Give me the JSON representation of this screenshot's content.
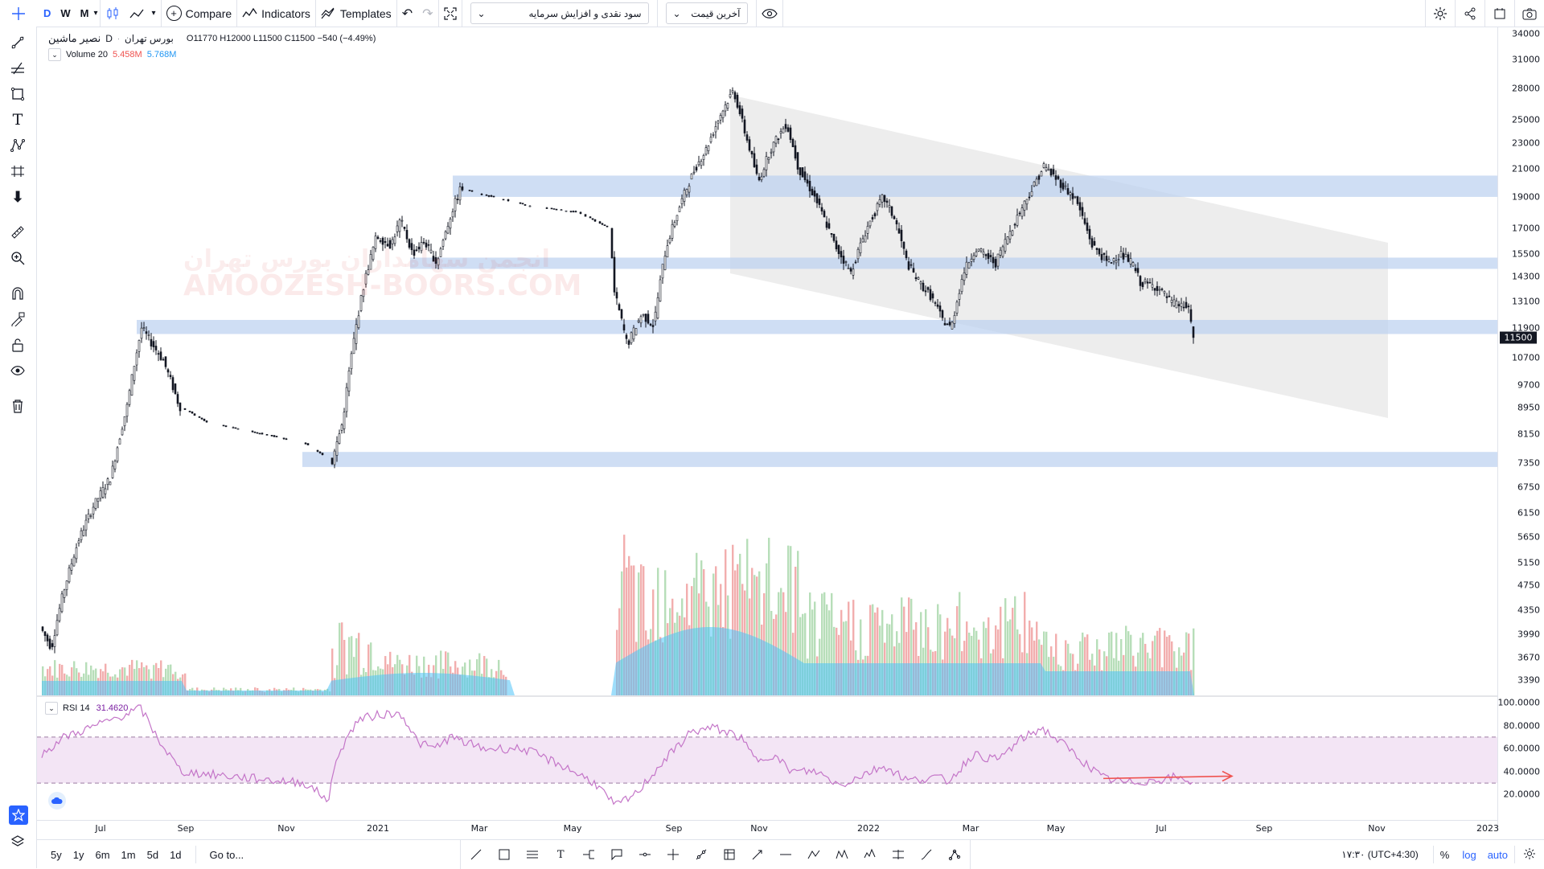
{
  "toolbar": {
    "intervals": [
      "D",
      "W",
      "M"
    ],
    "active_interval": "D",
    "compare_label": "Compare",
    "indicators_label": "Indicators",
    "templates_label": "Templates",
    "dropdown_fundamental": "سود نقدی و افزایش سرمایه",
    "dropdown_price": "آخرین قیمت"
  },
  "legend": {
    "symbol": "نصیر ماشین",
    "interval": "D",
    "exchange": "بورس تهران",
    "ohlc": "O11770 H12000 L11500 C11500 −540 (−4.49%)",
    "volume_label": "Volume 20",
    "volume_val1": "5.458M",
    "volume_val2": "5.768M"
  },
  "rsi": {
    "label": "RSI 14",
    "value": "31.4620"
  },
  "watermark": {
    "fa": "انجمن سهامداران بورس تهران",
    "en": "AMOOZESH-BOORS.COM"
  },
  "price_axis": {
    "ticks": [
      "34000",
      "31000",
      "28000",
      "25000",
      "23000",
      "21000",
      "19000",
      "17000",
      "15500",
      "14300",
      "13100",
      "11900",
      "10700",
      "9700",
      "8950",
      "8150",
      "7350",
      "6750",
      "6150",
      "5650",
      "5150",
      "4750",
      "4350",
      "3990",
      "3670",
      "3390"
    ],
    "current": "11500"
  },
  "rsi_axis": {
    "ticks": [
      "100.0000",
      "80.0000",
      "60.0000",
      "40.0000",
      "20.0000"
    ]
  },
  "time_axis": {
    "ticks": [
      "Jul",
      "Sep",
      "Nov",
      "2021",
      "Mar",
      "May",
      "Sep",
      "Nov",
      "2022",
      "Mar",
      "May",
      "Jul",
      "Sep",
      "Nov",
      "2023"
    ]
  },
  "bottom": {
    "ranges": [
      "5y",
      "1y",
      "6m",
      "1m",
      "5d",
      "1d"
    ],
    "goto_label": "Go to...",
    "clock": "۱۷:۳۰ (UTC+4:30)",
    "percent_label": "%",
    "log_label": "log",
    "auto_label": "auto"
  },
  "chart_data": {
    "type": "candlestick",
    "price_range": [
      3390,
      34000
    ],
    "last_close": 11500,
    "zones": [
      {
        "from": 19000,
        "to": 20500
      },
      {
        "from": 14700,
        "to": 15300
      },
      {
        "from": 11650,
        "to": 12250
      },
      {
        "from": 7250,
        "to": 7650
      }
    ],
    "rsi_range": [
      0,
      100
    ],
    "rsi_bands": [
      30,
      70
    ],
    "last_rsi": 31.46
  },
  "colors": {
    "accent": "#2962ff",
    "zone": "#bbd0f0",
    "rsi_line": "#c475c8",
    "rsi_band": "#f3e5f5",
    "vol_up": "#a5d6a7",
    "vol_down": "#ef9a9a",
    "vol_ma": "#4fc3f7",
    "down_red": "#ef5350"
  }
}
